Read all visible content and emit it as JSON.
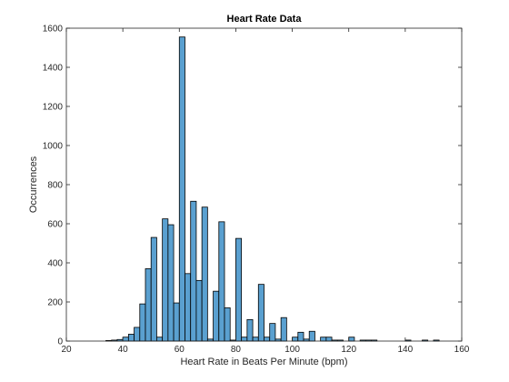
{
  "chart_data": {
    "type": "bar",
    "title": "Heart Rate Data",
    "xlabel": "Heart Rate in Beats Per Minute (bpm)",
    "ylabel": "Occurrences",
    "xlim": [
      20,
      160
    ],
    "ylim": [
      0,
      1600
    ],
    "xticks": [
      "20",
      "40",
      "60",
      "80",
      "100",
      "120",
      "140",
      "160"
    ],
    "yticks": [
      "0",
      "200",
      "400",
      "600",
      "800",
      "1000",
      "1200",
      "1400",
      "1600"
    ],
    "grid": false,
    "bin_width": 2,
    "bar_color": "#5aa0d0",
    "bar_edge_color": "#000000",
    "x": [
      34,
      36,
      38,
      40,
      42,
      44,
      46,
      48,
      50,
      52,
      54,
      56,
      58,
      60,
      62,
      64,
      66,
      68,
      70,
      72,
      74,
      76,
      78,
      80,
      82,
      84,
      86,
      88,
      90,
      92,
      94,
      96,
      98,
      100,
      102,
      104,
      106,
      108,
      110,
      112,
      114,
      116,
      118,
      120,
      122,
      124,
      126,
      128,
      130,
      132,
      134,
      136,
      138,
      140,
      142,
      144,
      146,
      148,
      150
    ],
    "values": [
      3,
      5,
      8,
      20,
      35,
      70,
      190,
      370,
      530,
      20,
      625,
      595,
      195,
      1555,
      345,
      715,
      310,
      685,
      10,
      255,
      610,
      170,
      5,
      525,
      20,
      110,
      20,
      290,
      20,
      90,
      10,
      120,
      0,
      20,
      45,
      10,
      50,
      0,
      20,
      20,
      5,
      5,
      0,
      20,
      0,
      5,
      5,
      5,
      0,
      0,
      0,
      0,
      0,
      5,
      0,
      0,
      5,
      0,
      5
    ]
  }
}
